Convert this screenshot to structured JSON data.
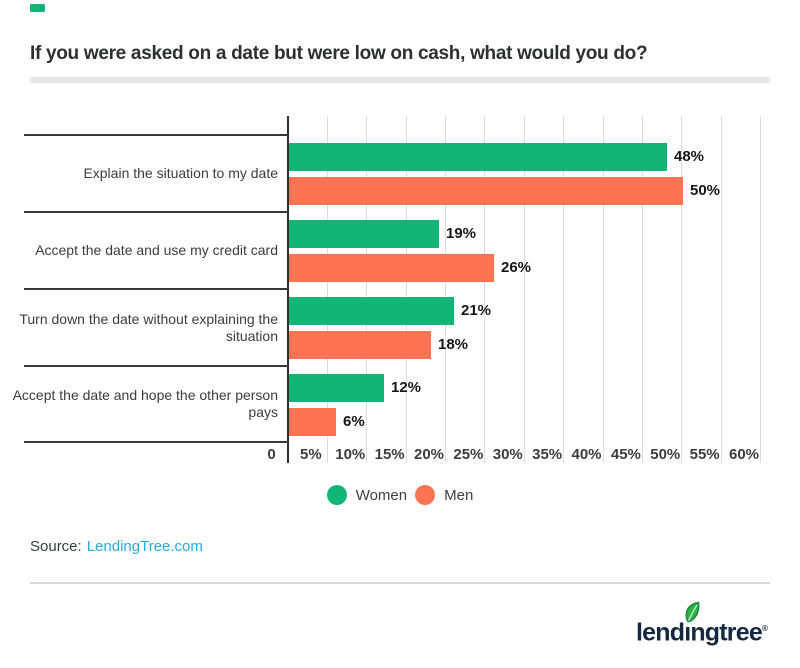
{
  "accent_color": "#12b576",
  "chart_data": {
    "type": "bar",
    "orientation": "horizontal",
    "title": "If you were asked on a date but were low on cash, what would you do?",
    "categories": [
      "Explain the situation to my date",
      "Accept the date and use my credit card",
      "Turn down the date without explaining the situation",
      "Accept the date and hope the other person pays"
    ],
    "category_lines": [
      [
        "Explain the situation to my date"
      ],
      [
        "Accept the date and use my credit card"
      ],
      [
        "Turn down the date without explaining the",
        "situation"
      ],
      [
        "Accept the date and hope the other person",
        "pays"
      ]
    ],
    "series": [
      {
        "name": "Women",
        "color": "#12b576",
        "values": [
          48,
          19,
          21,
          12
        ]
      },
      {
        "name": "Men",
        "color": "#fc7451",
        "values": [
          50,
          26,
          18,
          6
        ]
      }
    ],
    "value_labels": [
      [
        "48%",
        "19%",
        "21%",
        "12%"
      ],
      [
        "50%",
        "26%",
        "18%",
        "6%"
      ]
    ],
    "x_ticks": [
      "0",
      "5%",
      "10%",
      "15%",
      "20%",
      "25%",
      "30%",
      "35%",
      "40%",
      "45%",
      "50%",
      "55%",
      "60%"
    ],
    "xlim": [
      0,
      60
    ],
    "grid": true,
    "legend_position": "bottom"
  },
  "source": {
    "label": "Source:",
    "link": "LendingTree.com",
    "link_color": "#29abe2"
  },
  "logo": {
    "text": "lendingtree",
    "registered": "®",
    "navy": "#16283f",
    "leaf_green": "#2eb34b",
    "leaf_dark": "#178a3e"
  }
}
